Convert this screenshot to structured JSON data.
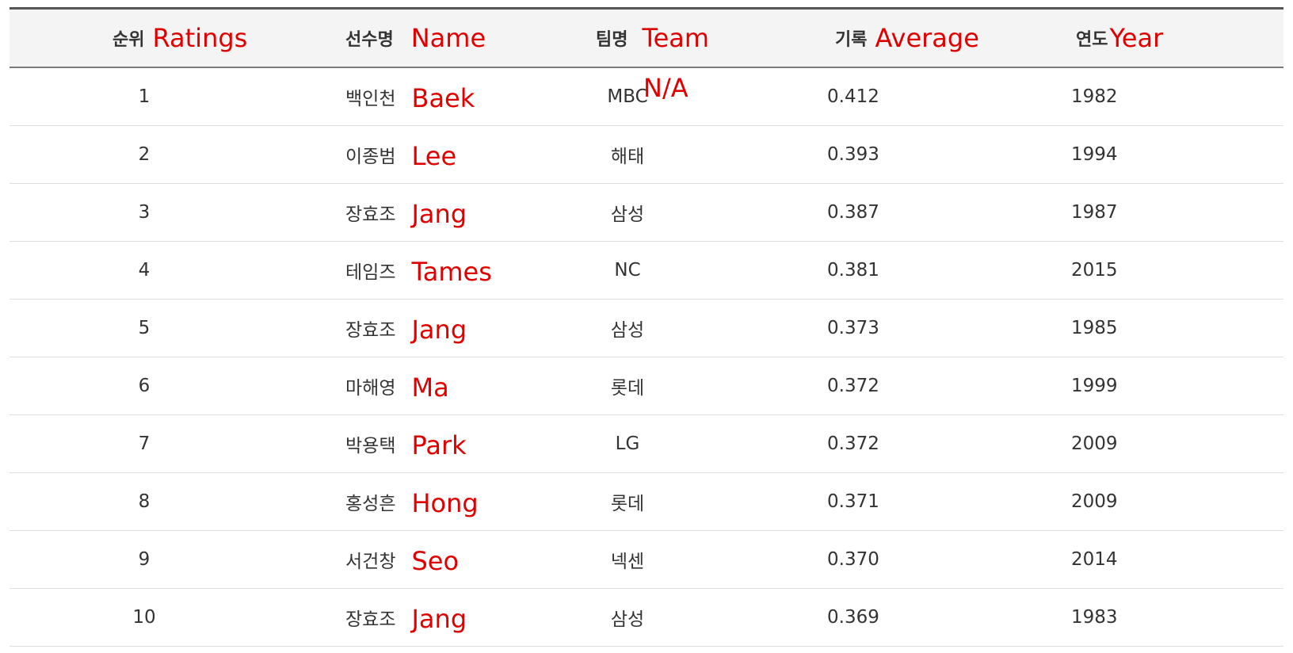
{
  "header": {
    "rank_ko": "순위",
    "rank_en": "Ratings",
    "name_ko": "선수명",
    "name_en": "Name",
    "team_ko": "팀명",
    "team_en": "Team",
    "avg_ko": "기록",
    "avg_en": "Average",
    "year_ko": "연도",
    "year_en": "Year"
  },
  "annotation": {
    "na_label": "N/A"
  },
  "rows": [
    {
      "rank": "1",
      "name_ko": "백인천",
      "name_en": "Baek",
      "team": "MBC",
      "avg": "0.412",
      "year": "1982"
    },
    {
      "rank": "2",
      "name_ko": "이종범",
      "name_en": "Lee",
      "team": "해태",
      "avg": "0.393",
      "year": "1994"
    },
    {
      "rank": "3",
      "name_ko": "장효조",
      "name_en": "Jang",
      "team": "삼성",
      "avg": "0.387",
      "year": "1987"
    },
    {
      "rank": "4",
      "name_ko": "테임즈",
      "name_en": "Tames",
      "team": "NC",
      "avg": "0.381",
      "year": "2015"
    },
    {
      "rank": "5",
      "name_ko": "장효조",
      "name_en": "Jang",
      "team": "삼성",
      "avg": "0.373",
      "year": "1985"
    },
    {
      "rank": "6",
      "name_ko": "마해영",
      "name_en": "Ma",
      "team": "롯데",
      "avg": "0.372",
      "year": "1999"
    },
    {
      "rank": "7",
      "name_ko": "박용택",
      "name_en": "Park",
      "team": "LG",
      "avg": "0.372",
      "year": "2009"
    },
    {
      "rank": "8",
      "name_ko": "홍성흔",
      "name_en": "Hong",
      "team": "롯데",
      "avg": "0.371",
      "year": "2009"
    },
    {
      "rank": "9",
      "name_ko": "서건창",
      "name_en": "Seo",
      "team": "넥센",
      "avg": "0.370",
      "year": "2014"
    },
    {
      "rank": "10",
      "name_ko": "장효조",
      "name_en": "Jang",
      "team": "삼성",
      "avg": "0.369",
      "year": "1983"
    }
  ],
  "colors": {
    "annotation_red": "#e00000",
    "header_bg": "#f4f4f4",
    "text": "#333333",
    "row_divider": "#dddddd"
  }
}
